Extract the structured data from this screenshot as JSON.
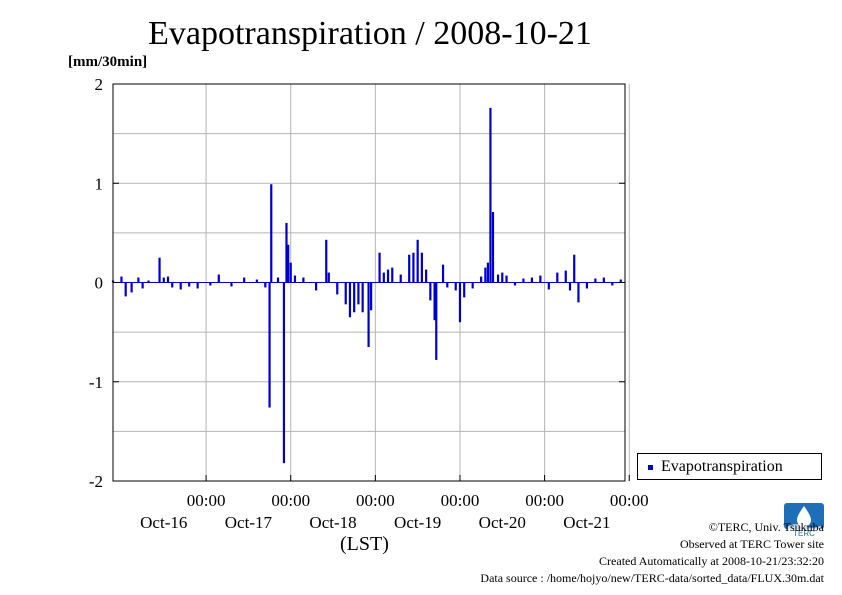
{
  "title": "Evapotranspiration / 2008-10-21",
  "unit_label": "[mm/30min]",
  "xaxis_label": "(LST)",
  "legend": {
    "label": "Evapotranspiration",
    "color": "#0000cc"
  },
  "footer": {
    "copyright": "©TERC, Univ. Tsukuba",
    "observed": "Observed at TERC Tower site",
    "created": "Created Automatically at 2008-10-21/23:32:20",
    "source": "Data source : /home/hojyo/new/TERC-data/sorted_data/FLUX.30m.dat"
  },
  "logo": {
    "text": "TERC",
    "icon": "terc-logo-icon",
    "color": "#1f6fb8"
  },
  "chart_data": {
    "type": "bar",
    "title": "Evapotranspiration / 2008-10-21",
    "ylabel": "[mm/30min]",
    "xlabel": "(LST)",
    "ylim": [
      -2,
      2
    ],
    "yticks": [
      "2",
      "1",
      "0",
      "-1",
      "-2"
    ],
    "xlim_days": [
      -0.1,
      5.95
    ],
    "xticks": [
      {
        "time": "00:00",
        "date": "Oct-16"
      },
      {
        "time": "00:00",
        "date": "Oct-17"
      },
      {
        "time": "00:00",
        "date": "Oct-18"
      },
      {
        "time": "00:00",
        "date": "Oct-19"
      },
      {
        "time": "00:00",
        "date": "Oct-20"
      },
      {
        "time": "00:00",
        "date": "Oct-21"
      }
    ],
    "grid": true,
    "legend_position": "bottom-right outside",
    "series": [
      {
        "name": "Evapotranspiration",
        "color": "#0000cc",
        "points": [
          [
            -0.1,
            0.02
          ],
          [
            0.0,
            0.06
          ],
          [
            0.05,
            -0.14
          ],
          [
            0.12,
            -0.1
          ],
          [
            0.2,
            0.05
          ],
          [
            0.25,
            -0.06
          ],
          [
            0.32,
            0.02
          ],
          [
            0.45,
            0.25
          ],
          [
            0.5,
            0.05
          ],
          [
            0.55,
            0.06
          ],
          [
            0.6,
            -0.05
          ],
          [
            0.7,
            -0.07
          ],
          [
            0.8,
            -0.04
          ],
          [
            0.9,
            -0.06
          ],
          [
            1.05,
            -0.03
          ],
          [
            1.15,
            0.08
          ],
          [
            1.3,
            -0.04
          ],
          [
            1.45,
            0.05
          ],
          [
            1.6,
            0.03
          ],
          [
            1.7,
            -0.05
          ],
          [
            1.75,
            -1.26
          ],
          [
            1.77,
            0.99
          ],
          [
            1.85,
            0.05
          ],
          [
            1.92,
            -1.82
          ],
          [
            1.95,
            0.6
          ],
          [
            1.97,
            0.38
          ],
          [
            2.0,
            0.2
          ],
          [
            2.05,
            0.07
          ],
          [
            2.15,
            0.05
          ],
          [
            2.3,
            -0.08
          ],
          [
            2.42,
            0.43
          ],
          [
            2.45,
            0.1
          ],
          [
            2.55,
            -0.12
          ],
          [
            2.65,
            -0.22
          ],
          [
            2.7,
            -0.35
          ],
          [
            2.75,
            -0.3
          ],
          [
            2.8,
            -0.22
          ],
          [
            2.85,
            -0.3
          ],
          [
            2.92,
            -0.65
          ],
          [
            2.95,
            -0.28
          ],
          [
            3.05,
            0.3
          ],
          [
            3.1,
            0.1
          ],
          [
            3.15,
            0.13
          ],
          [
            3.2,
            0.15
          ],
          [
            3.3,
            0.08
          ],
          [
            3.4,
            0.28
          ],
          [
            3.45,
            0.3
          ],
          [
            3.5,
            0.43
          ],
          [
            3.55,
            0.3
          ],
          [
            3.6,
            0.13
          ],
          [
            3.65,
            -0.18
          ],
          [
            3.7,
            -0.38
          ],
          [
            3.72,
            -0.78
          ],
          [
            3.8,
            0.18
          ],
          [
            3.85,
            -0.05
          ],
          [
            3.95,
            -0.08
          ],
          [
            4.0,
            -0.4
          ],
          [
            4.05,
            -0.15
          ],
          [
            4.15,
            -0.06
          ],
          [
            4.25,
            0.06
          ],
          [
            4.3,
            0.15
          ],
          [
            4.33,
            0.2
          ],
          [
            4.36,
            1.76
          ],
          [
            4.39,
            0.71
          ],
          [
            4.45,
            0.08
          ],
          [
            4.5,
            0.1
          ],
          [
            4.55,
            0.07
          ],
          [
            4.65,
            -0.03
          ],
          [
            4.75,
            0.04
          ],
          [
            4.85,
            0.05
          ],
          [
            4.95,
            0.07
          ],
          [
            5.05,
            -0.07
          ],
          [
            5.15,
            0.1
          ],
          [
            5.25,
            0.12
          ],
          [
            5.3,
            -0.08
          ],
          [
            5.35,
            0.28
          ],
          [
            5.4,
            -0.2
          ],
          [
            5.5,
            -0.06
          ],
          [
            5.6,
            0.04
          ],
          [
            5.7,
            0.05
          ],
          [
            5.8,
            -0.03
          ],
          [
            5.9,
            0.03
          ]
        ]
      }
    ]
  }
}
